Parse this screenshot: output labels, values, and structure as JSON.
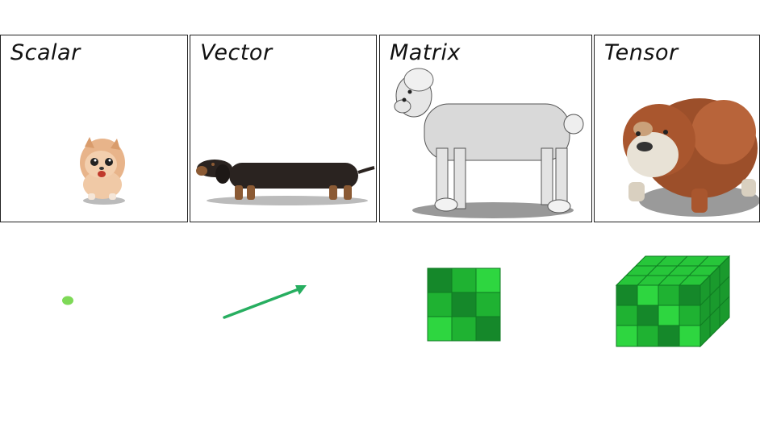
{
  "panels": [
    {
      "id": "scalar",
      "title": "Scalar",
      "dog": "pomeranian",
      "symbol": "point"
    },
    {
      "id": "vector",
      "title": "Vector",
      "dog": "dachshund",
      "symbol": "arrow"
    },
    {
      "id": "matrix",
      "title": "Matrix",
      "dog": "poodle",
      "symbol": "grid"
    },
    {
      "id": "tensor",
      "title": "Tensor",
      "dog": "bulldog",
      "symbol": "cube"
    }
  ],
  "colors": {
    "point": "#7ed957",
    "arrow": "#27ae60",
    "green_dark": "#15882a",
    "green_mid": "#1fb232",
    "green_light": "#2ed640"
  }
}
